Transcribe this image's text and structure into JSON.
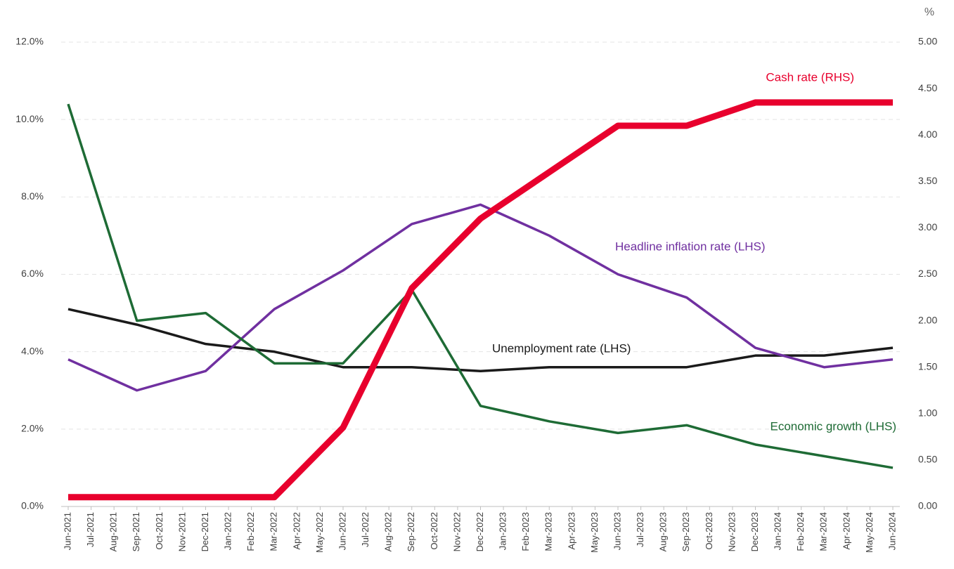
{
  "chart_data": {
    "type": "line",
    "categories": [
      "Jun-2021",
      "Jul-2021",
      "Aug-2021",
      "Sep-2021",
      "Oct-2021",
      "Nov-2021",
      "Dec-2021",
      "Jan-2022",
      "Feb-2022",
      "Mar-2022",
      "Apr-2022",
      "May-2022",
      "Jun-2022",
      "Jul-2022",
      "Aug-2022",
      "Sep-2022",
      "Oct-2022",
      "Nov-2022",
      "Dec-2022",
      "Jan-2023",
      "Feb-2023",
      "Mar-2023",
      "Apr-2023",
      "May-2023",
      "Jun-2023",
      "Jul-2023",
      "Aug-2023",
      "Sep-2023",
      "Oct-2023",
      "Nov-2023",
      "Dec-2023",
      "Jan-2024",
      "Feb-2024",
      "Mar-2024",
      "Apr-2024",
      "May-2024",
      "Jun-2024"
    ],
    "x": [
      "Jun-2021",
      "Sep-2021",
      "Dec-2021",
      "Mar-2022",
      "Jun-2022",
      "Sep-2022",
      "Dec-2022",
      "Mar-2023",
      "Jun-2023",
      "Sep-2023",
      "Dec-2023",
      "Mar-2024",
      "Jun-2024"
    ],
    "series": [
      {
        "name": "Unemployment rate  (LHS)",
        "color": "#1a1a1a",
        "values": [
          5.1,
          4.7,
          4.2,
          4.0,
          3.6,
          3.6,
          3.5,
          3.6,
          3.6,
          3.6,
          3.9,
          3.9,
          4.1
        ]
      },
      {
        "name": "Headline inflation rate (LHS)",
        "color": "#7030a0",
        "values": [
          3.8,
          3.0,
          3.5,
          5.1,
          6.1,
          7.3,
          7.8,
          7.0,
          6.0,
          5.4,
          4.1,
          3.6,
          3.8
        ]
      },
      {
        "name": "Economic growth (LHS)",
        "color": "#1e6b35",
        "values": [
          10.4,
          4.8,
          5.0,
          3.7,
          3.7,
          5.6,
          2.6,
          2.2,
          1.9,
          2.1,
          1.6,
          1.3,
          1.0
        ]
      },
      {
        "name": "Cash rate (RHS)",
        "color": "#e8002d",
        "axis": "y2",
        "values": [
          0.1,
          0.1,
          0.1,
          0.1,
          0.85,
          2.35,
          3.1,
          3.6,
          4.1,
          4.1,
          4.35,
          4.35,
          4.35
        ]
      }
    ],
    "ylim": [
      0,
      12
    ],
    "yticks": [
      {
        "value": 0,
        "label": "0.0%"
      },
      {
        "value": 2,
        "label": "2.0%"
      },
      {
        "value": 4,
        "label": "4.0%"
      },
      {
        "value": 6,
        "label": "6.0%"
      },
      {
        "value": 8,
        "label": "8.0%"
      },
      {
        "value": 10,
        "label": "10.0%"
      },
      {
        "value": 12,
        "label": "12.0%"
      }
    ],
    "y2label": "%",
    "y2lim": [
      0,
      5
    ],
    "y2ticks": [
      {
        "value": 0,
        "label": "0.00"
      },
      {
        "value": 0.5,
        "label": "0.50"
      },
      {
        "value": 1,
        "label": "1.00"
      },
      {
        "value": 1.5,
        "label": "1.50"
      },
      {
        "value": 2,
        "label": "2.00"
      },
      {
        "value": 2.5,
        "label": "2.50"
      },
      {
        "value": 3,
        "label": "3.00"
      },
      {
        "value": 3.5,
        "label": "3.50"
      },
      {
        "value": 4,
        "label": "4.00"
      },
      {
        "value": 4.5,
        "label": "4.50"
      },
      {
        "value": 5,
        "label": "5.00"
      }
    ],
    "grid": true
  }
}
